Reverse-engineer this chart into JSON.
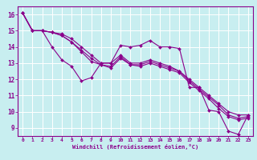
{
  "xlabel": "Windchill (Refroidissement éolien,°C)",
  "background_color": "#c8eef0",
  "line_color": "#8b008b",
  "grid_color": "#ffffff",
  "xlim": [
    -0.5,
    23.5
  ],
  "ylim": [
    8.5,
    16.5
  ],
  "yticks": [
    9,
    10,
    11,
    12,
    13,
    14,
    15,
    16
  ],
  "xticks": [
    0,
    1,
    2,
    3,
    4,
    5,
    6,
    7,
    8,
    9,
    10,
    11,
    12,
    13,
    14,
    15,
    16,
    17,
    18,
    19,
    20,
    21,
    22,
    23
  ],
  "line1_y": [
    16.1,
    15.0,
    15.0,
    14.0,
    13.2,
    12.8,
    11.9,
    12.1,
    13.0,
    13.0,
    14.1,
    14.0,
    14.1,
    14.4,
    14.0,
    14.0,
    13.9,
    11.5,
    11.5,
    10.1,
    10.0,
    8.8,
    8.6,
    9.8
  ],
  "line2_y": [
    16.1,
    15.0,
    15.0,
    14.9,
    14.8,
    14.5,
    14.0,
    13.5,
    13.0,
    13.0,
    13.5,
    13.0,
    13.0,
    13.2,
    13.0,
    12.8,
    12.5,
    12.0,
    11.5,
    11.0,
    10.5,
    10.0,
    9.8,
    9.8
  ],
  "line3_y": [
    16.1,
    15.0,
    15.0,
    14.9,
    14.7,
    14.3,
    13.8,
    13.3,
    12.9,
    12.8,
    13.4,
    12.9,
    12.9,
    13.1,
    12.9,
    12.7,
    12.5,
    11.9,
    11.4,
    10.9,
    10.4,
    9.8,
    9.6,
    9.7
  ],
  "line4_y": [
    16.1,
    15.0,
    15.0,
    14.9,
    14.7,
    14.3,
    13.7,
    13.1,
    12.9,
    12.7,
    13.3,
    12.9,
    12.8,
    13.0,
    12.8,
    12.6,
    12.4,
    11.8,
    11.3,
    10.8,
    10.2,
    9.7,
    9.5,
    9.6
  ]
}
